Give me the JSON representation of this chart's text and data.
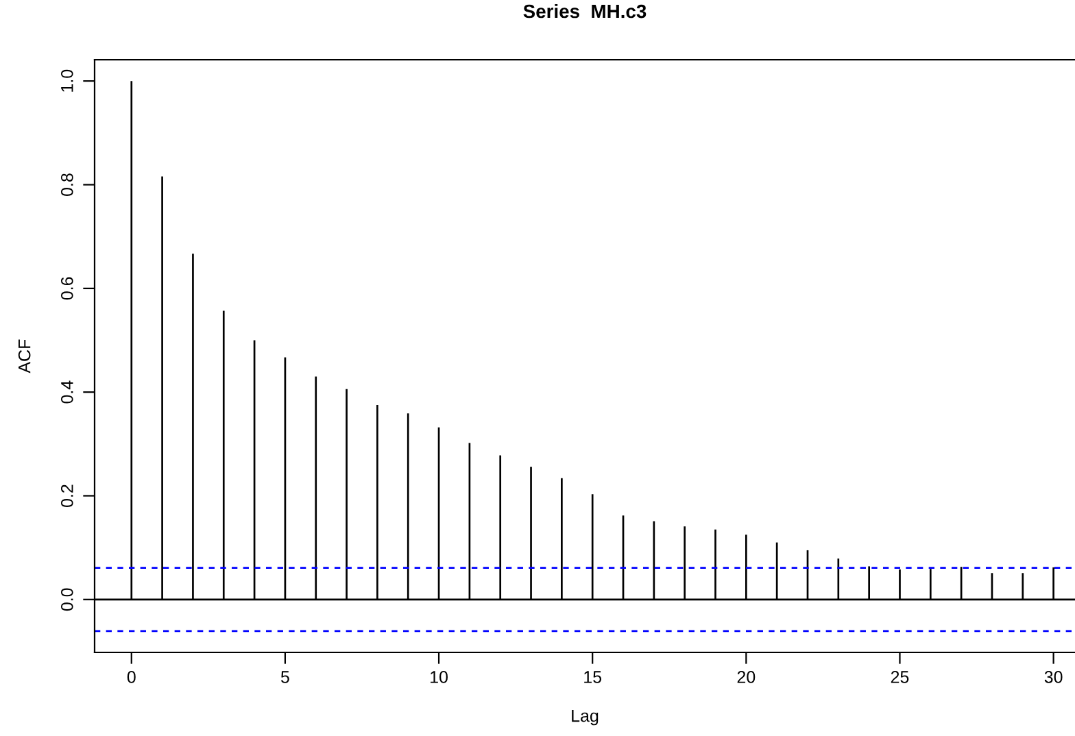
{
  "chart_data": {
    "type": "bar",
    "title": "Series  MH.c3",
    "xlabel": "Lag",
    "ylabel": "ACF",
    "x": [
      0,
      1,
      2,
      3,
      4,
      5,
      6,
      7,
      8,
      9,
      10,
      11,
      12,
      13,
      14,
      15,
      16,
      17,
      18,
      19,
      20,
      21,
      22,
      23,
      24,
      25,
      26,
      27,
      28,
      29,
      30
    ],
    "values": [
      1.0,
      0.816,
      0.667,
      0.557,
      0.5,
      0.467,
      0.43,
      0.406,
      0.375,
      0.359,
      0.332,
      0.302,
      0.278,
      0.256,
      0.234,
      0.203,
      0.162,
      0.151,
      0.141,
      0.135,
      0.125,
      0.11,
      0.095,
      0.079,
      0.064,
      0.058,
      0.059,
      0.063,
      0.051,
      0.051,
      0.062
    ],
    "color": "#000000",
    "xlim": [
      -1.2,
      30.7
    ],
    "ylim": [
      -0.102,
      1.041
    ],
    "xticks": [
      0,
      5,
      10,
      15,
      20,
      25,
      30
    ],
    "yticks": [
      {
        "value": 0,
        "label": "0.0"
      },
      0.2,
      0.4,
      0.6,
      0.8,
      {
        "value": 1,
        "label": "1.0"
      }
    ],
    "ref_lines": [
      {
        "axis": "y",
        "value": 0,
        "color": "#000000",
        "line_style": "solid"
      },
      {
        "axis": "y",
        "value": 0.061,
        "color": "#0000ff",
        "line_style": "dashed"
      },
      {
        "axis": "y",
        "value": -0.061,
        "color": "#0000ff",
        "line_style": "dashed"
      }
    ],
    "grid": false,
    "legend": false
  }
}
